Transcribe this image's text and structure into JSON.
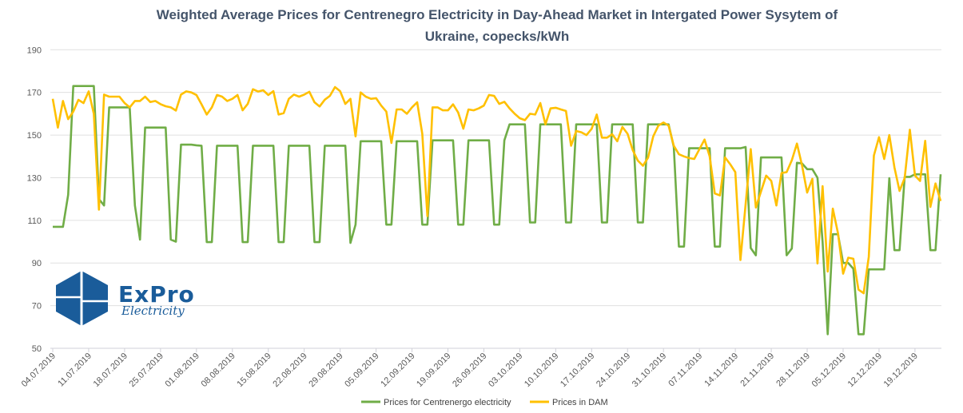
{
  "chart_data": {
    "type": "line",
    "title": "Weighted Average Prices for Centrenegro Electricity in Day-Ahead Market in Intergated Power Sysytem of Ukraine, copecks/kWh",
    "title_lines": [
      "Weighted Average Prices for Centrenegro Electricity in Day-Ahead Market in Intergated Power Sysytem of",
      "Ukraine, copecks/kWh"
    ],
    "xlabel": "",
    "ylabel": "",
    "ylim": [
      50,
      190
    ],
    "yticks": [
      50,
      70,
      90,
      110,
      130,
      150,
      170,
      190
    ],
    "x_tick_labels": [
      "04.07.2019",
      "11.07.2019",
      "18.07.2019",
      "25.07.2019",
      "01.08.2019",
      "08.08.2019",
      "15.08.2019",
      "22.08.2019",
      "29.08.2019",
      "05.09.2019",
      "12.09.2019",
      "19.09.2019",
      "26.09.2019",
      "03.10.2019",
      "10.10.2019",
      "17.10.2019",
      "24.10.2019",
      "31.10.2019",
      "07.11.2019",
      "14.11.2019",
      "21.11.2019",
      "28.11.2019",
      "05.12.2019",
      "12.12.2019",
      "19.12.2019"
    ],
    "x_tick_every_days": 7,
    "grid": "horizontal",
    "legend_position": "bottom",
    "series": [
      {
        "name": "Prices for Centrenergo electricity",
        "color": "#70ad47",
        "values": [
          107,
          107,
          107,
          122,
          173,
          173,
          173,
          173,
          173,
          120,
          117,
          163,
          163,
          163,
          163,
          163,
          117,
          101,
          153.5,
          153.5,
          153.5,
          153.5,
          153.5,
          101,
          100,
          145.5,
          145.5,
          145.5,
          145.2,
          145,
          99.8,
          99.8,
          145,
          145,
          145,
          145,
          145,
          99.8,
          99.8,
          145,
          145,
          145,
          145,
          145,
          99.8,
          99.8,
          145,
          145,
          145,
          145,
          145,
          99.8,
          99.8,
          145,
          145,
          145,
          145,
          145,
          99.4,
          108,
          147.1,
          147.1,
          147.1,
          147.1,
          147.1,
          108,
          108,
          147.1,
          147.1,
          147.1,
          147.1,
          147.1,
          108,
          108,
          147.5,
          147.5,
          147.5,
          147.5,
          147.5,
          108,
          108,
          147.5,
          147.5,
          147.5,
          147.5,
          147.5,
          108,
          108,
          147.5,
          155,
          155,
          155,
          155,
          109,
          109,
          155,
          155,
          155,
          155,
          155,
          109,
          109,
          155,
          155,
          155,
          155,
          155,
          109,
          109,
          155,
          155,
          155,
          155,
          155,
          109,
          109,
          155,
          155,
          155,
          155,
          155,
          144.5,
          97.7,
          97.7,
          143.8,
          143.8,
          143.8,
          143.8,
          143.8,
          97.7,
          97.7,
          143.8,
          143.8,
          143.8,
          143.8,
          144.4,
          97,
          93.6,
          139.5,
          139.5,
          139.5,
          139.5,
          139.5,
          93.6,
          96.8,
          137,
          136.7,
          134,
          134,
          130,
          100,
          56.6,
          103.5,
          103.5,
          90,
          90,
          87.3,
          56.6,
          56.6,
          87,
          87,
          87,
          87,
          129.8,
          96,
          96,
          130.4,
          130.4,
          131.6,
          131.6,
          131.6,
          96,
          96,
          131.6
        ]
      },
      {
        "name": "Prices in DAM",
        "color": "#ffc000",
        "values": [
          167,
          153.5,
          166,
          157.5,
          161,
          166.5,
          165,
          170.5,
          160,
          115,
          169,
          168,
          168,
          168,
          165,
          163,
          166,
          166,
          168,
          165.5,
          166,
          164.5,
          163.5,
          163,
          161.5,
          169,
          170.5,
          170,
          168.8,
          164.4,
          159.6,
          163,
          168.8,
          168,
          166,
          167,
          168.8,
          161.6,
          164.6,
          171.5,
          170.4,
          171,
          168.8,
          170.6,
          159.6,
          160.3,
          167,
          169,
          168,
          169,
          170.3,
          165.4,
          163.4,
          166.6,
          168.4,
          172.5,
          170.6,
          164.6,
          167,
          149.4,
          170,
          168,
          167,
          167.3,
          163.8,
          161,
          146.3,
          162,
          162,
          160,
          163,
          165.4,
          150.6,
          112,
          163,
          163,
          161.6,
          161.6,
          164.4,
          160.6,
          153,
          162,
          161.6,
          162.5,
          163.8,
          168.8,
          168.4,
          164.6,
          165.6,
          162.5,
          160,
          157.9,
          157,
          160,
          159.6,
          165,
          155,
          162.5,
          162.8,
          162,
          161.3,
          145,
          151.9,
          151.3,
          150,
          152.9,
          159.6,
          148.8,
          148.8,
          150.4,
          147.1,
          153.8,
          150.6,
          143,
          138,
          135.6,
          139.4,
          149.4,
          154.4,
          155.9,
          154.4,
          145,
          141,
          140,
          139.2,
          138.8,
          143.4,
          147.9,
          140,
          122.6,
          121.7,
          139.5,
          136.3,
          132.6,
          91.4,
          117.6,
          143.4,
          116,
          123.5,
          131,
          128.5,
          117,
          132.2,
          132.6,
          138.2,
          146,
          135.7,
          123,
          129.5,
          89.8,
          126,
          86,
          115.5,
          103.9,
          85,
          92.5,
          92,
          77.5,
          75.8,
          92.9,
          140.4,
          149,
          138.8,
          150,
          134.8,
          123.8,
          129.8,
          152.5,
          131,
          128.5,
          147.3,
          116.3,
          127.3,
          119.1
        ]
      }
    ]
  },
  "logo": {
    "name": "ExPro",
    "tagline": "Electricity",
    "color": "#1a5c9a"
  }
}
